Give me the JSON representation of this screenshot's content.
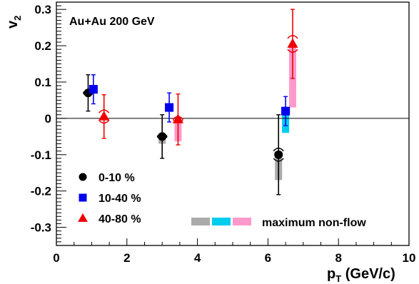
{
  "chart_data": {
    "type": "scatter",
    "title": "",
    "annotation": "Au+Au 200 GeV",
    "xlabel": "p",
    "xlabel_sub": "T",
    "xlabel_unit": " (GeV/c)",
    "ylabel": "v",
    "ylabel_sub": "2",
    "xlim": [
      0,
      10
    ],
    "ylim": [
      -0.35,
      0.32
    ],
    "x_ticks": [
      "0",
      "2",
      "4",
      "6",
      "8",
      "10"
    ],
    "y_ticks": [
      "-0.3",
      "-0.2",
      "-0.1",
      "0",
      "0.1",
      "0.2",
      "0.3"
    ],
    "zero_line": true,
    "grid": false,
    "legend_placement": "bottom-left",
    "series": [
      {
        "name": "0-10 %",
        "marker": "circle",
        "color": "#000000",
        "nonflow_color": "#aaaaaa",
        "points": [
          {
            "x": 0.9,
            "y": 0.07,
            "err": 0.05,
            "sys": 0.01,
            "nonflow": 0.0
          },
          {
            "x": 3.0,
            "y": -0.05,
            "err": 0.06,
            "sys": 0.01,
            "nonflow": 0.02
          },
          {
            "x": 6.3,
            "y": -0.1,
            "err": 0.11,
            "sys": 0.02,
            "nonflow": 0.07
          }
        ]
      },
      {
        "name": "10-40 %",
        "marker": "square",
        "color": "#0000ee",
        "nonflow_color": "#00ccee",
        "points": [
          {
            "x": 1.05,
            "y": 0.08,
            "err": 0.04,
            "sys": 0.0,
            "nonflow": 0.0
          },
          {
            "x": 3.2,
            "y": 0.03,
            "err": 0.04,
            "sys": 0.0,
            "nonflow": 0.0
          },
          {
            "x": 6.5,
            "y": 0.02,
            "err": 0.04,
            "sys": 0.0,
            "nonflow": 0.06
          }
        ]
      },
      {
        "name": "40-80 %",
        "marker": "triangle",
        "color": "#ee0000",
        "nonflow_color": "#ff99cc",
        "points": [
          {
            "x": 1.35,
            "y": 0.005,
            "err": 0.06,
            "sys": 0.02,
            "nonflow": 0.0
          },
          {
            "x": 3.45,
            "y": -0.003,
            "err": 0.07,
            "sys": 0.01,
            "nonflow": 0.06
          },
          {
            "x": 6.7,
            "y": 0.205,
            "err": 0.095,
            "sys": 0.025,
            "nonflow": 0.175
          }
        ]
      }
    ],
    "nonflow_legend_label": "maximum non-flow"
  }
}
